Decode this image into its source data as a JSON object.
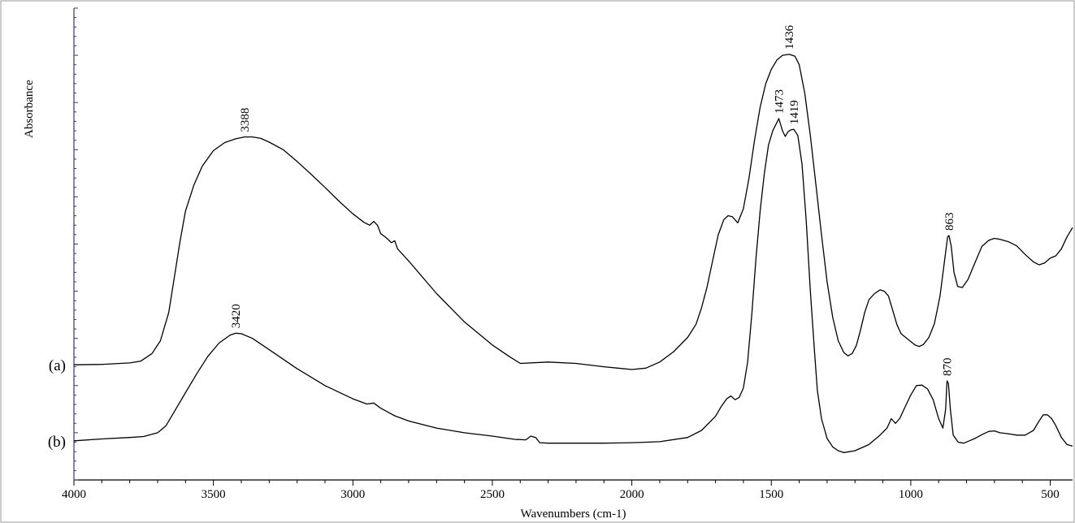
{
  "chart_data": {
    "type": "line",
    "xlabel": "Wavenumbers (cm-1)",
    "ylabel": "Absorbance",
    "xlim": [
      4000,
      420
    ],
    "x_reversed": true,
    "ylim": [
      0,
      1
    ],
    "x_ticks": [
      4000,
      3500,
      3000,
      2500,
      2000,
      1500,
      1000,
      500
    ],
    "grid": false,
    "legend": "none",
    "line_color": "#000000",
    "axis_color": "#3a3a6a",
    "series": [
      {
        "label": "(a)",
        "points": [
          [
            4000,
            0.244
          ],
          [
            3900,
            0.245
          ],
          [
            3800,
            0.248
          ],
          [
            3760,
            0.252
          ],
          [
            3720,
            0.268
          ],
          [
            3690,
            0.295
          ],
          [
            3660,
            0.355
          ],
          [
            3640,
            0.43
          ],
          [
            3620,
            0.505
          ],
          [
            3600,
            0.57
          ],
          [
            3570,
            0.625
          ],
          [
            3540,
            0.665
          ],
          [
            3500,
            0.698
          ],
          [
            3460,
            0.715
          ],
          [
            3420,
            0.723
          ],
          [
            3388,
            0.727
          ],
          [
            3360,
            0.727
          ],
          [
            3330,
            0.724
          ],
          [
            3300,
            0.716
          ],
          [
            3250,
            0.7
          ],
          [
            3200,
            0.675
          ],
          [
            3150,
            0.648
          ],
          [
            3100,
            0.62
          ],
          [
            3050,
            0.591
          ],
          [
            3000,
            0.564
          ],
          [
            2960,
            0.546
          ],
          [
            2940,
            0.54
          ],
          [
            2925,
            0.548
          ],
          [
            2912,
            0.54
          ],
          [
            2900,
            0.522
          ],
          [
            2880,
            0.513
          ],
          [
            2862,
            0.503
          ],
          [
            2850,
            0.507
          ],
          [
            2840,
            0.49
          ],
          [
            2800,
            0.464
          ],
          [
            2700,
            0.395
          ],
          [
            2600,
            0.335
          ],
          [
            2500,
            0.286
          ],
          [
            2440,
            0.262
          ],
          [
            2400,
            0.247
          ],
          [
            2300,
            0.25
          ],
          [
            2200,
            0.247
          ],
          [
            2100,
            0.24
          ],
          [
            2000,
            0.234
          ],
          [
            1950,
            0.237
          ],
          [
            1900,
            0.25
          ],
          [
            1850,
            0.272
          ],
          [
            1800,
            0.302
          ],
          [
            1770,
            0.33
          ],
          [
            1750,
            0.365
          ],
          [
            1730,
            0.41
          ],
          [
            1710,
            0.465
          ],
          [
            1690,
            0.52
          ],
          [
            1670,
            0.552
          ],
          [
            1655,
            0.56
          ],
          [
            1640,
            0.558
          ],
          [
            1620,
            0.545
          ],
          [
            1600,
            0.575
          ],
          [
            1580,
            0.64
          ],
          [
            1560,
            0.72
          ],
          [
            1540,
            0.79
          ],
          [
            1520,
            0.84
          ],
          [
            1500,
            0.87
          ],
          [
            1480,
            0.89
          ],
          [
            1460,
            0.9
          ],
          [
            1436,
            0.902
          ],
          [
            1415,
            0.898
          ],
          [
            1400,
            0.88
          ],
          [
            1380,
            0.82
          ],
          [
            1360,
            0.73
          ],
          [
            1340,
            0.625
          ],
          [
            1320,
            0.52
          ],
          [
            1300,
            0.42
          ],
          [
            1280,
            0.345
          ],
          [
            1260,
            0.295
          ],
          [
            1240,
            0.27
          ],
          [
            1225,
            0.263
          ],
          [
            1210,
            0.268
          ],
          [
            1195,
            0.285
          ],
          [
            1180,
            0.318
          ],
          [
            1165,
            0.355
          ],
          [
            1150,
            0.382
          ],
          [
            1130,
            0.395
          ],
          [
            1110,
            0.403
          ],
          [
            1095,
            0.4
          ],
          [
            1080,
            0.39
          ],
          [
            1065,
            0.36
          ],
          [
            1050,
            0.33
          ],
          [
            1035,
            0.31
          ],
          [
            1010,
            0.298
          ],
          [
            985,
            0.286
          ],
          [
            970,
            0.283
          ],
          [
            955,
            0.287
          ],
          [
            935,
            0.302
          ],
          [
            915,
            0.332
          ],
          [
            895,
            0.39
          ],
          [
            880,
            0.46
          ],
          [
            868,
            0.515
          ],
          [
            863,
            0.518
          ],
          [
            855,
            0.495
          ],
          [
            845,
            0.44
          ],
          [
            832,
            0.41
          ],
          [
            815,
            0.408
          ],
          [
            795,
            0.425
          ],
          [
            770,
            0.46
          ],
          [
            745,
            0.495
          ],
          [
            720,
            0.508
          ],
          [
            700,
            0.512
          ],
          [
            680,
            0.51
          ],
          [
            650,
            0.505
          ],
          [
            620,
            0.496
          ],
          [
            590,
            0.478
          ],
          [
            560,
            0.462
          ],
          [
            540,
            0.456
          ],
          [
            520,
            0.46
          ],
          [
            500,
            0.47
          ],
          [
            480,
            0.475
          ],
          [
            460,
            0.49
          ],
          [
            440,
            0.515
          ],
          [
            420,
            0.535
          ]
        ],
        "peak_labels": [
          {
            "x": 3388,
            "text": "3388"
          },
          {
            "x": 1436,
            "text": "1436"
          },
          {
            "x": 863,
            "text": "863"
          }
        ]
      },
      {
        "label": "(b)",
        "points": [
          [
            4000,
            0.083
          ],
          [
            3900,
            0.087
          ],
          [
            3800,
            0.09
          ],
          [
            3750,
            0.092
          ],
          [
            3700,
            0.1
          ],
          [
            3670,
            0.115
          ],
          [
            3650,
            0.135
          ],
          [
            3630,
            0.155
          ],
          [
            3600,
            0.185
          ],
          [
            3560,
            0.225
          ],
          [
            3520,
            0.262
          ],
          [
            3480,
            0.29
          ],
          [
            3440,
            0.307
          ],
          [
            3420,
            0.311
          ],
          [
            3400,
            0.31
          ],
          [
            3360,
            0.3
          ],
          [
            3300,
            0.276
          ],
          [
            3250,
            0.256
          ],
          [
            3200,
            0.236
          ],
          [
            3100,
            0.2
          ],
          [
            3000,
            0.172
          ],
          [
            2950,
            0.161
          ],
          [
            2925,
            0.163
          ],
          [
            2900,
            0.152
          ],
          [
            2850,
            0.136
          ],
          [
            2800,
            0.125
          ],
          [
            2700,
            0.11
          ],
          [
            2600,
            0.1
          ],
          [
            2500,
            0.093
          ],
          [
            2420,
            0.086
          ],
          [
            2380,
            0.085
          ],
          [
            2362,
            0.093
          ],
          [
            2345,
            0.09
          ],
          [
            2330,
            0.079
          ],
          [
            2300,
            0.078
          ],
          [
            2200,
            0.078
          ],
          [
            2100,
            0.078
          ],
          [
            2000,
            0.079
          ],
          [
            1900,
            0.081
          ],
          [
            1800,
            0.09
          ],
          [
            1750,
            0.105
          ],
          [
            1700,
            0.135
          ],
          [
            1680,
            0.155
          ],
          [
            1660,
            0.172
          ],
          [
            1645,
            0.178
          ],
          [
            1630,
            0.17
          ],
          [
            1615,
            0.175
          ],
          [
            1600,
            0.195
          ],
          [
            1585,
            0.25
          ],
          [
            1570,
            0.35
          ],
          [
            1555,
            0.47
          ],
          [
            1540,
            0.57
          ],
          [
            1525,
            0.65
          ],
          [
            1510,
            0.71
          ],
          [
            1495,
            0.74
          ],
          [
            1482,
            0.755
          ],
          [
            1473,
            0.766
          ],
          [
            1460,
            0.74
          ],
          [
            1450,
            0.728
          ],
          [
            1440,
            0.738
          ],
          [
            1430,
            0.742
          ],
          [
            1419,
            0.743
          ],
          [
            1405,
            0.73
          ],
          [
            1390,
            0.67
          ],
          [
            1375,
            0.55
          ],
          [
            1360,
            0.4
          ],
          [
            1345,
            0.27
          ],
          [
            1335,
            0.19
          ],
          [
            1320,
            0.13
          ],
          [
            1300,
            0.088
          ],
          [
            1280,
            0.07
          ],
          [
            1260,
            0.062
          ],
          [
            1240,
            0.058
          ],
          [
            1200,
            0.062
          ],
          [
            1150,
            0.075
          ],
          [
            1110,
            0.095
          ],
          [
            1085,
            0.11
          ],
          [
            1070,
            0.13
          ],
          [
            1055,
            0.12
          ],
          [
            1040,
            0.13
          ],
          [
            1020,
            0.155
          ],
          [
            1000,
            0.18
          ],
          [
            980,
            0.2
          ],
          [
            960,
            0.201
          ],
          [
            940,
            0.193
          ],
          [
            920,
            0.17
          ],
          [
            900,
            0.13
          ],
          [
            885,
            0.11
          ],
          [
            875,
            0.15
          ],
          [
            870,
            0.21
          ],
          [
            865,
            0.205
          ],
          [
            858,
            0.15
          ],
          [
            848,
            0.095
          ],
          [
            830,
            0.08
          ],
          [
            810,
            0.078
          ],
          [
            790,
            0.083
          ],
          [
            770,
            0.088
          ],
          [
            745,
            0.096
          ],
          [
            720,
            0.103
          ],
          [
            700,
            0.104
          ],
          [
            680,
            0.1
          ],
          [
            650,
            0.098
          ],
          [
            620,
            0.095
          ],
          [
            590,
            0.095
          ],
          [
            560,
            0.105
          ],
          [
            540,
            0.125
          ],
          [
            525,
            0.138
          ],
          [
            510,
            0.138
          ],
          [
            495,
            0.13
          ],
          [
            480,
            0.115
          ],
          [
            460,
            0.09
          ],
          [
            440,
            0.075
          ],
          [
            420,
            0.072
          ]
        ],
        "peak_labels": [
          {
            "x": 3420,
            "text": "3420"
          },
          {
            "x": 1473,
            "text": "1473"
          },
          {
            "x": 1419,
            "text": "1419"
          },
          {
            "x": 870,
            "text": "870"
          }
        ]
      }
    ]
  }
}
